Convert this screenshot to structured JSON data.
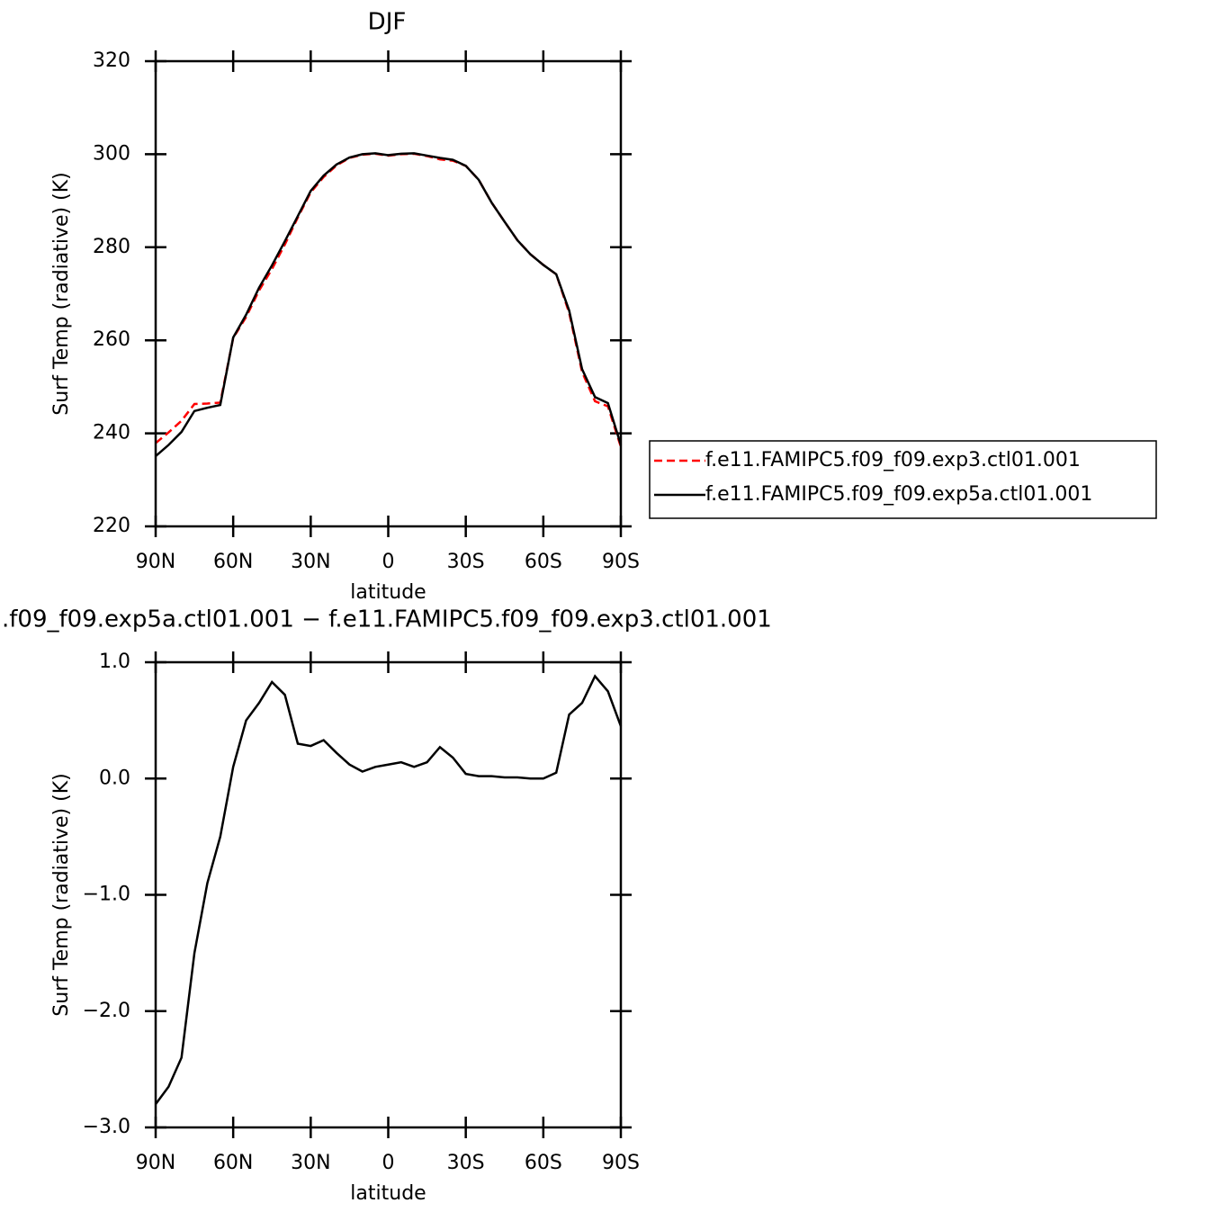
{
  "chart_data": [
    {
      "type": "line",
      "title": "DJF",
      "xlabel": "latitude",
      "ylabel": "Surf Temp (radiative) (K)",
      "x": [
        90,
        85,
        80,
        75,
        70,
        65,
        60,
        55,
        50,
        45,
        40,
        35,
        30,
        25,
        20,
        15,
        10,
        5,
        0,
        -5,
        -10,
        -15,
        -20,
        -25,
        -30,
        -35,
        -40,
        -45,
        -50,
        -55,
        -60,
        -65,
        -70,
        -75,
        -80,
        -85,
        -90
      ],
      "series": [
        {
          "name": "f.e11.FAMIPC5.f09_f09.exp3.ctl01.001",
          "color": "#ff0000",
          "dash": true,
          "values": [
            237.9,
            240.2,
            242.7,
            246.3,
            246.4,
            246.6,
            260.5,
            265.0,
            270.7,
            275.3,
            280.6,
            286.4,
            291.8,
            295.1,
            297.6,
            299.2,
            299.9,
            300.1,
            299.7,
            300.0,
            300.1,
            299.6,
            298.9,
            298.6,
            297.5,
            294.5,
            289.6,
            285.5,
            281.5,
            278.5,
            276.2,
            274.2,
            265.9,
            253.2,
            246.9,
            245.8,
            237.1
          ]
        },
        {
          "name": "f.e11.FAMIPC5.f09_f09.exp5a.ctl01.001",
          "color": "#000000",
          "dash": false,
          "values": [
            235.1,
            237.5,
            240.3,
            244.8,
            245.5,
            246.1,
            260.6,
            265.5,
            271.3,
            276.1,
            281.3,
            286.7,
            292.1,
            295.4,
            297.8,
            299.3,
            300.0,
            300.2,
            299.8,
            300.1,
            300.2,
            299.7,
            299.2,
            298.8,
            297.5,
            294.5,
            289.6,
            285.5,
            281.5,
            278.5,
            276.2,
            274.2,
            266.4,
            253.8,
            247.8,
            246.5,
            237.5
          ]
        }
      ],
      "xlim": [
        90,
        -90
      ],
      "xticks": [
        {
          "value": 90,
          "label": "90N"
        },
        {
          "value": 60,
          "label": "60N"
        },
        {
          "value": 30,
          "label": "30N"
        },
        0,
        {
          "value": -30,
          "label": "30S"
        },
        {
          "value": -60,
          "label": "60S"
        },
        {
          "value": -90,
          "label": "90S"
        }
      ],
      "ylim": [
        220,
        320
      ],
      "yticks": [
        220,
        240,
        260,
        280,
        300,
        320
      ],
      "legend": "right"
    },
    {
      "type": "line",
      "title": ".f09_f09.exp5a.ctl01.001 − f.e11.FAMIPC5.f09_f09.exp3.ctl01.001",
      "xlabel": "latitude",
      "ylabel": "Surf Temp (radiative) (K)",
      "x": [
        90,
        85,
        80,
        75,
        70,
        65,
        60,
        55,
        50,
        45,
        40,
        35,
        30,
        25,
        20,
        15,
        10,
        5,
        0,
        -5,
        -10,
        -15,
        -20,
        -25,
        -30,
        -35,
        -40,
        -45,
        -50,
        -55,
        -60,
        -65,
        -70,
        -75,
        -80,
        -85,
        -90
      ],
      "series": [
        {
          "color": "#000000",
          "dash": false,
          "values": [
            -2.8,
            -2.65,
            -2.4,
            -1.5,
            -0.9,
            -0.5,
            0.1,
            0.5,
            0.65,
            0.83,
            0.72,
            0.3,
            0.28,
            0.33,
            0.22,
            0.12,
            0.06,
            0.1,
            0.12,
            0.14,
            0.1,
            0.14,
            0.27,
            0.18,
            0.04,
            0.02,
            0.02,
            0.01,
            0.01,
            0.0,
            0.0,
            0.05,
            0.55,
            0.65,
            0.88,
            0.75,
            0.45
          ]
        }
      ],
      "xlim": [
        90,
        -90
      ],
      "xticks": [
        {
          "value": 90,
          "label": "90N"
        },
        {
          "value": 60,
          "label": "60N"
        },
        {
          "value": 30,
          "label": "30N"
        },
        0,
        {
          "value": -30,
          "label": "30S"
        },
        {
          "value": -60,
          "label": "60S"
        },
        {
          "value": -90,
          "label": "90S"
        }
      ],
      "ylim": [
        -3,
        1
      ],
      "yticks": [
        {
          "value": -3,
          "label": "−3.0"
        },
        {
          "value": -2,
          "label": "−2.0"
        },
        {
          "value": -1,
          "label": "−1.0"
        },
        {
          "value": 0,
          "label": "0.0"
        },
        {
          "value": 1,
          "label": "1.0"
        }
      ]
    }
  ]
}
